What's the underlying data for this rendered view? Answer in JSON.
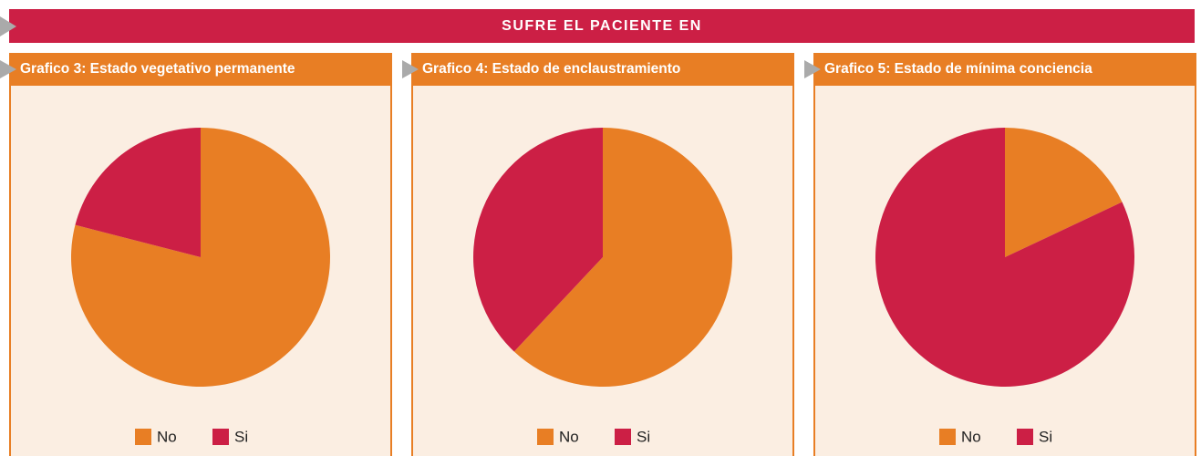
{
  "header": {
    "title": "SUFRE EL PACIENTE EN"
  },
  "chart_data": [
    {
      "type": "pie",
      "title": "Grafico 3: Estado vegetativo permanente",
      "categories": [
        "No",
        "Si"
      ],
      "values": [
        79,
        21
      ],
      "colors": [
        "#e87e24",
        "#cc1f45"
      ]
    },
    {
      "type": "pie",
      "title": "Grafico 4: Estado de enclaustramiento",
      "categories": [
        "No",
        "Si"
      ],
      "values": [
        62,
        38
      ],
      "colors": [
        "#e87e24",
        "#cc1f45"
      ]
    },
    {
      "type": "pie",
      "title": "Grafico 5: Estado de mínima conciencia",
      "categories": [
        "No",
        "Si"
      ],
      "values": [
        18,
        82
      ],
      "colors": [
        "#e87e24",
        "#cc1f45"
      ]
    }
  ]
}
